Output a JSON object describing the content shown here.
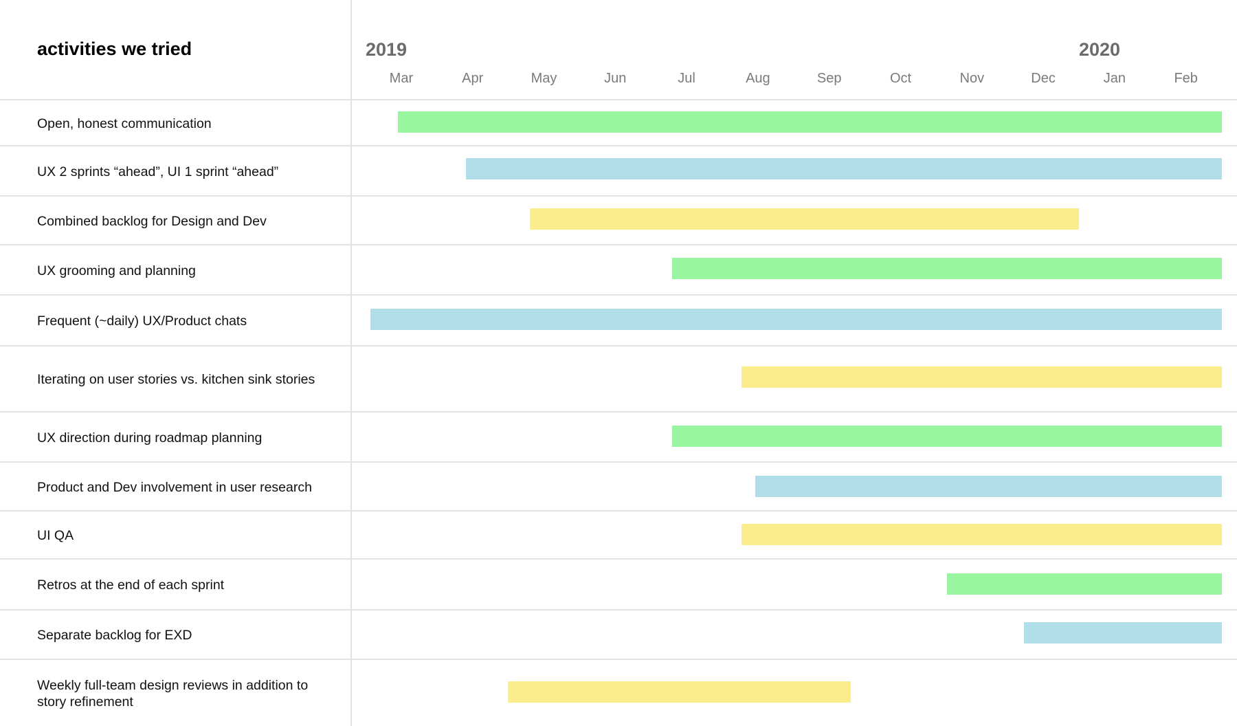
{
  "chart_data": {
    "type": "gantt",
    "title": "activities we tried",
    "years": [
      {
        "label": "2019",
        "month_index": 0
      },
      {
        "label": "2020",
        "month_index": 10
      }
    ],
    "months": [
      "Mar",
      "Apr",
      "May",
      "Jun",
      "Jul",
      "Aug",
      "Sep",
      "Oct",
      "Nov",
      "Dec",
      "Jan",
      "Feb"
    ],
    "month_units": "months since start of Mar 2019 (0 = start of Mar 2019, 12 = end of Feb 2020)",
    "colors": {
      "green": "#98f5a0",
      "blue": "#b0dfe9",
      "yellow": "#fbec8c"
    },
    "activities": [
      {
        "label": "Open, honest communication",
        "start": 0.45,
        "end": 12.0,
        "color": "green"
      },
      {
        "label": "UX 2 sprints “ahead”, UI 1 sprint “ahead”",
        "start": 1.41,
        "end": 12.0,
        "color": "blue"
      },
      {
        "label": "Combined backlog for Design and Dev",
        "start": 2.3,
        "end": 10.0,
        "color": "yellow"
      },
      {
        "label": "UX grooming and planning",
        "start": 4.3,
        "end": 12.0,
        "color": "green"
      },
      {
        "label": "Frequent (~daily) UX/Product chats",
        "start": 0.07,
        "end": 12.0,
        "color": "blue"
      },
      {
        "label": "Iterating on user stories vs. kitchen sink stories",
        "start": 5.27,
        "end": 12.0,
        "color": "yellow"
      },
      {
        "label": "UX direction during roadmap planning",
        "start": 4.3,
        "end": 12.0,
        "color": "green"
      },
      {
        "label": "Product and Dev involvement in user research",
        "start": 5.46,
        "end": 12.0,
        "color": "blue"
      },
      {
        "label": "UI QA",
        "start": 5.27,
        "end": 12.0,
        "color": "yellow"
      },
      {
        "label": "Retros at the end of each sprint",
        "start": 8.15,
        "end": 12.0,
        "color": "green"
      },
      {
        "label": "Separate backlog for EXD",
        "start": 9.23,
        "end": 12.0,
        "color": "blue"
      },
      {
        "label": "Weekly full-team design reviews in addition to story refinement",
        "start": 1.99,
        "end": 6.8,
        "color": "yellow"
      }
    ]
  }
}
